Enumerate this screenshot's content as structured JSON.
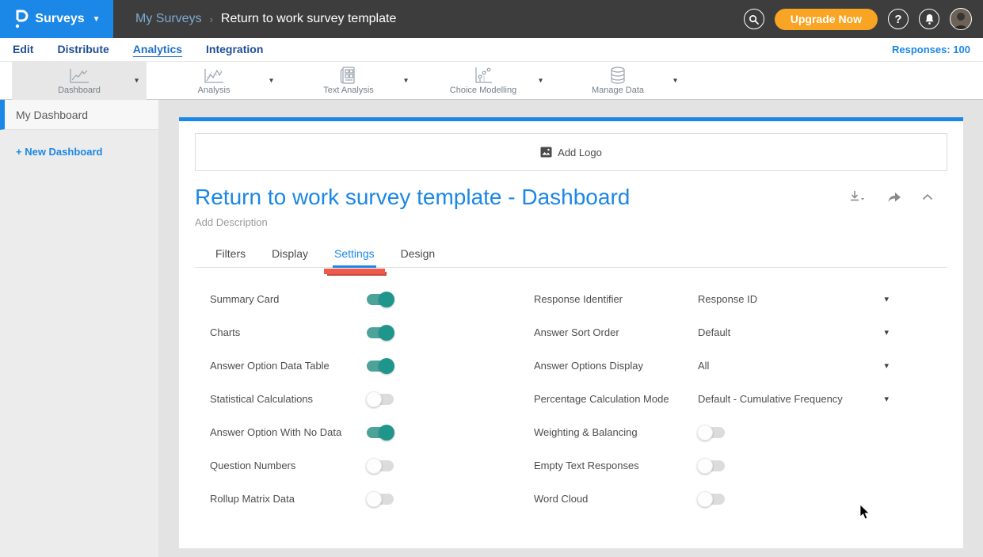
{
  "header": {
    "product_label": "Surveys",
    "breadcrumb": {
      "parent": "My Surveys",
      "separator": "›",
      "current": "Return to work survey template"
    },
    "upgrade_label": "Upgrade Now",
    "help_glyph": "?"
  },
  "nav": {
    "items": [
      {
        "label": "Edit",
        "active": false
      },
      {
        "label": "Distribute",
        "active": false
      },
      {
        "label": "Analytics",
        "active": true
      },
      {
        "label": "Integration",
        "active": false
      }
    ],
    "responses_label": "Responses: 100"
  },
  "toolbar": {
    "items": [
      {
        "label": "Dashboard",
        "icon": "dashboard-chart-icon",
        "active": true
      },
      {
        "label": "Analysis",
        "icon": "analysis-chart-icon",
        "active": false
      },
      {
        "label": "Text Analysis",
        "icon": "text-analysis-icon",
        "active": false
      },
      {
        "label": "Choice Modelling",
        "icon": "choice-modelling-icon",
        "active": false
      },
      {
        "label": "Manage Data",
        "icon": "manage-data-icon",
        "active": false
      }
    ]
  },
  "sidebar": {
    "items": [
      {
        "label": "My Dashboard",
        "active": true
      }
    ],
    "new_dashboard_label": "+ New Dashboard"
  },
  "main": {
    "add_logo_label": "Add Logo",
    "title": "Return to work survey template - Dashboard",
    "description_placeholder": "Add Description",
    "tabs": [
      {
        "label": "Filters",
        "active": false
      },
      {
        "label": "Display",
        "active": false
      },
      {
        "label": "Settings",
        "active": true,
        "annotated": true
      },
      {
        "label": "Design",
        "active": false
      }
    ],
    "settings_left": [
      {
        "label": "Summary Card",
        "state": "on"
      },
      {
        "label": "Charts",
        "state": "on"
      },
      {
        "label": "Answer Option Data Table",
        "state": "on"
      },
      {
        "label": "Statistical Calculations",
        "state": "off"
      },
      {
        "label": "Answer Option With No Data",
        "state": "on"
      },
      {
        "label": "Question Numbers",
        "state": "off"
      },
      {
        "label": "Rollup Matrix Data",
        "state": "off"
      }
    ],
    "settings_right": [
      {
        "label": "Response Identifier",
        "type": "dropdown",
        "value": "Response ID"
      },
      {
        "label": "Answer Sort Order",
        "type": "dropdown",
        "value": "Default"
      },
      {
        "label": "Answer Options Display",
        "type": "dropdown",
        "value": "All"
      },
      {
        "label": "Percentage Calculation Mode",
        "type": "dropdown",
        "value": "Default - Cumulative Frequency"
      },
      {
        "label": "Weighting & Balancing",
        "type": "toggle",
        "state": "off"
      },
      {
        "label": "Empty Text Responses",
        "type": "toggle",
        "state": "off"
      },
      {
        "label": "Word Cloud",
        "type": "toggle",
        "state": "off"
      }
    ]
  },
  "colors": {
    "accent_blue": "#1b87e6",
    "header_dark": "#3d3d3d",
    "upgrade_orange": "#f9a422",
    "toggle_on_teal": "#1f968b",
    "annotation_red": "#ee5a4b"
  }
}
